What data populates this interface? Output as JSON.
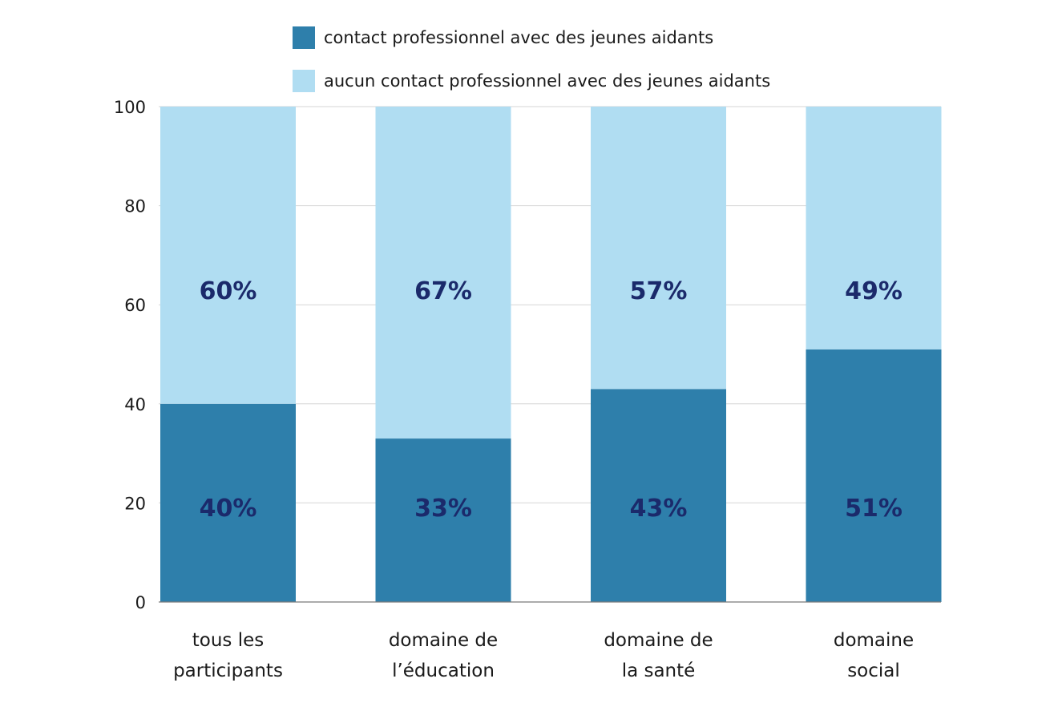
{
  "chart_data": {
    "type": "bar",
    "stacked": true,
    "categories": [
      [
        "tous les",
        "participants"
      ],
      [
        "domaine de",
        "l’éducation"
      ],
      [
        "domaine de",
        "la santé"
      ],
      [
        "domaine",
        "social"
      ]
    ],
    "series": [
      {
        "name": "contact professionnel avec des jeunes aidants",
        "values": [
          40,
          33,
          43,
          51
        ],
        "labels": [
          "40%",
          "33%",
          "43%",
          "51%"
        ],
        "color": "#2e7fab"
      },
      {
        "name": "aucun contact professionnel avec des jeunes aidants",
        "values": [
          60,
          67,
          57,
          49
        ],
        "labels": [
          "60%",
          "67%",
          "57%",
          "49%"
        ],
        "color": "#b0ddf2"
      }
    ],
    "ylim": [
      0,
      100
    ],
    "yticks": [
      0,
      20,
      40,
      60,
      80,
      100
    ],
    "grid": true,
    "legend_position": "top",
    "label_color": "#1b2a6b"
  }
}
